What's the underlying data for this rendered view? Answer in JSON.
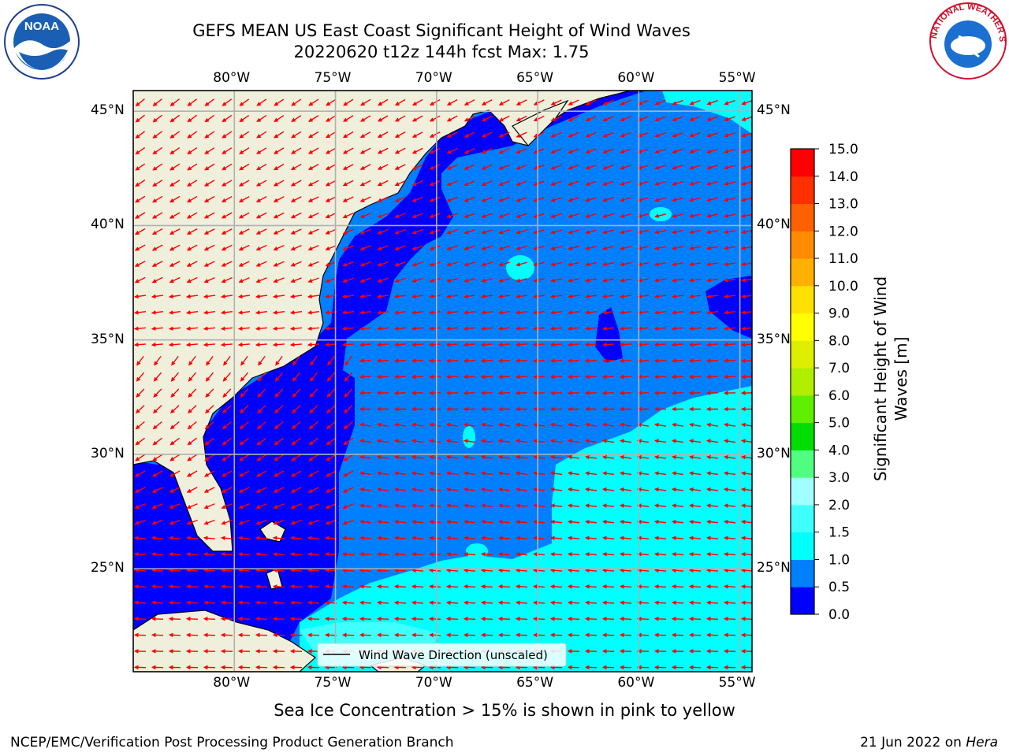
{
  "title": {
    "line1": "GEFS MEAN US East Coast Significant Height of Wind Waves",
    "line2": "20220620 t12z 144h fcst   Max: 1.75"
  },
  "map": {
    "lon_labels": [
      "80°W",
      "75°W",
      "70°W",
      "65°W",
      "60°W",
      "55°W"
    ],
    "lat_labels": [
      "45°N",
      "40°N",
      "35°N",
      "30°N",
      "25°N"
    ],
    "lon_range": [
      -85,
      -54.4
    ],
    "lat_range": [
      20.5,
      45.9
    ],
    "legend_text": "Wind Wave Direction (unscaled)",
    "colors": {
      "land": "#efefdc",
      "arrow": "#ff0000",
      "grid": "#b0b0b0",
      "coast": "#000000"
    }
  },
  "colorbar": {
    "ticks": [
      "0.0",
      "0.5",
      "1.0",
      "1.5",
      "2.0",
      "3.0",
      "4.0",
      "5.0",
      "6.0",
      "7.0",
      "8.0",
      "9.0",
      "10.0",
      "11.0",
      "12.0",
      "13.0",
      "14.0",
      "15.0"
    ],
    "colors": [
      "#0000ff",
      "#0080ff",
      "#00ffff",
      "#40ffff",
      "#a0ffff",
      "#50ff80",
      "#00dd00",
      "#60ee00",
      "#b0ee00",
      "#ddee00",
      "#ffff00",
      "#ffe000",
      "#ffb000",
      "#ff8c00",
      "#ff6000",
      "#ff3000",
      "#ff0000"
    ],
    "label": "Significant Height of Wind Waves [m]"
  },
  "caption": "Sea Ice Concentration > 15% is shown in pink to yellow",
  "footer": {
    "left": "NCEP/EMC/Verification Post Processing Product Generation Branch",
    "right_date": "21 Jun 2022 on ",
    "right_host": "Hera"
  },
  "logos": {
    "left": "NOAA",
    "right": "NATIONAL WEATHER SERVICE"
  }
}
